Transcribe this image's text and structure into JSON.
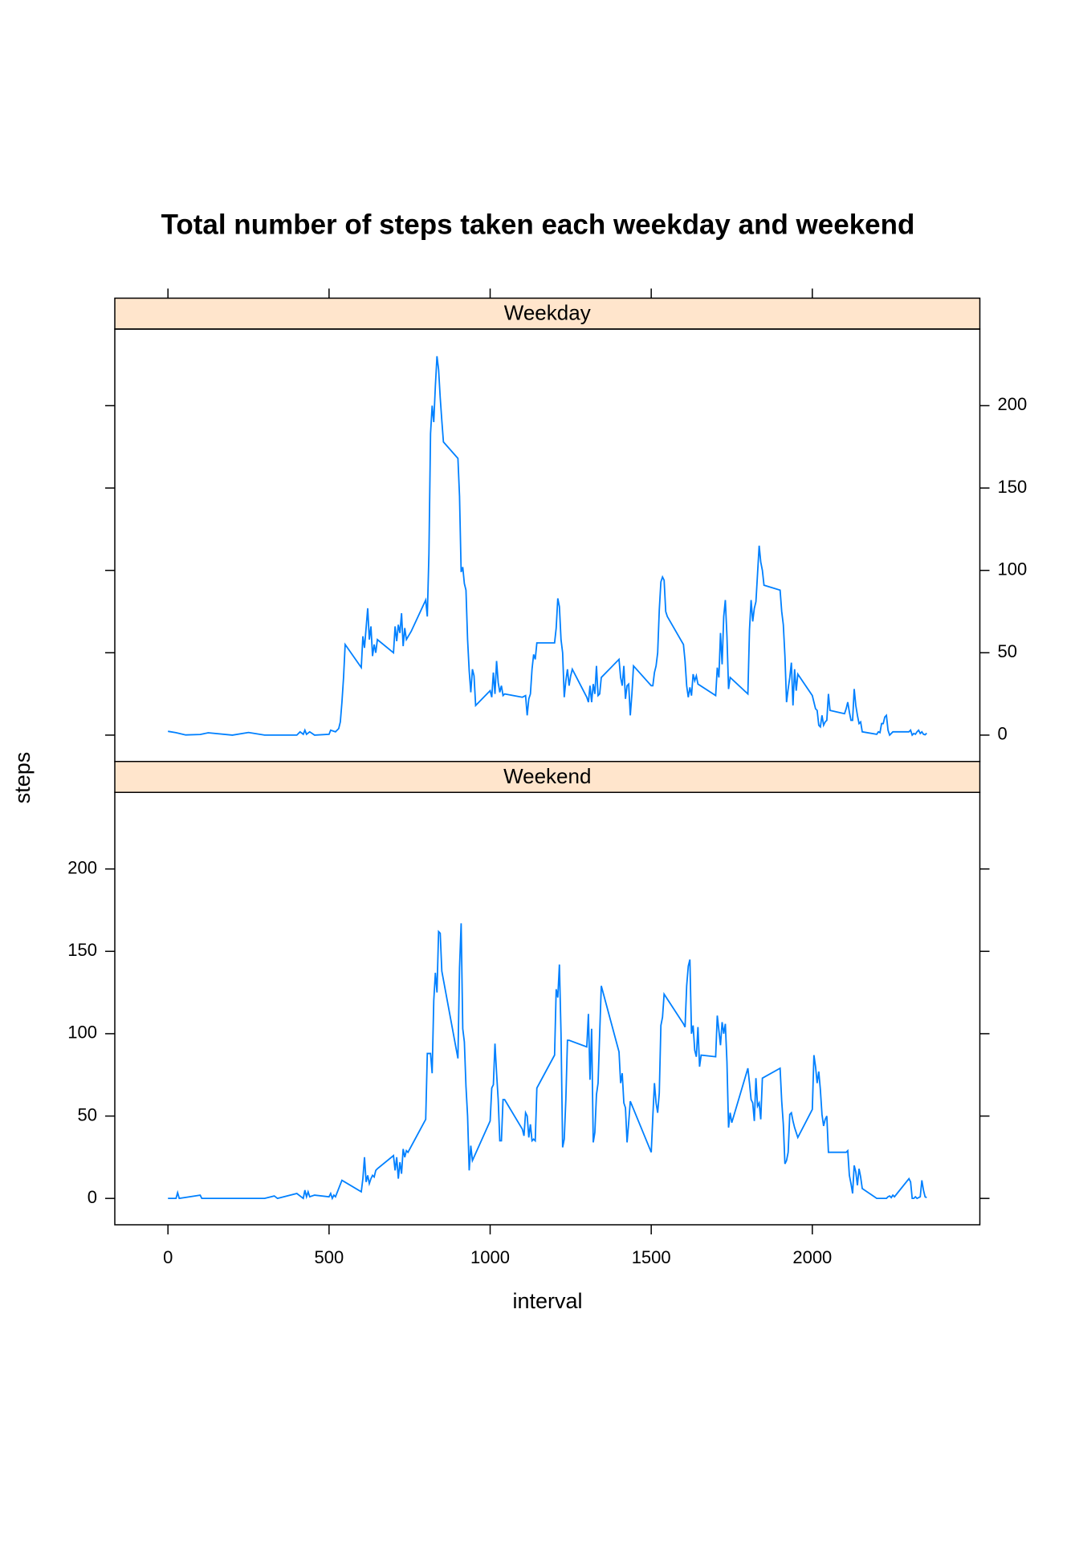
{
  "chart_data": {
    "type": "line",
    "title": "Total number of steps taken each weekday and weekend",
    "xlabel": "interval",
    "ylabel": "steps",
    "xlim": [
      -165,
      2520
    ],
    "ylim": [
      -16,
      246.5
    ],
    "xticks": [
      0,
      500,
      1000,
      1500,
      2000
    ],
    "yticks": [
      0,
      50,
      100,
      150,
      200
    ],
    "series": [
      {
        "name": "Weekday",
        "color": "#0080ff",
        "x": [
          0,
          25,
          55,
          100,
          125,
          200,
          250,
          300,
          400,
          410,
          420,
          425,
          430,
          440,
          455,
          500,
          505,
          520,
          530,
          535,
          540,
          545,
          550,
          600,
          605,
          610,
          615,
          620,
          625,
          630,
          635,
          640,
          645,
          650,
          700,
          705,
          710,
          715,
          720,
          725,
          730,
          735,
          740,
          755,
          800,
          805,
          810,
          815,
          820,
          825,
          830,
          835,
          840,
          845,
          850,
          855,
          900,
          905,
          910,
          915,
          920,
          925,
          930,
          935,
          940,
          945,
          950,
          955,
          1000,
          1005,
          1010,
          1015,
          1020,
          1025,
          1030,
          1035,
          1040,
          1045,
          1100,
          1110,
          1115,
          1120,
          1125,
          1130,
          1135,
          1140,
          1145,
          1200,
          1205,
          1210,
          1215,
          1220,
          1225,
          1230,
          1235,
          1240,
          1245,
          1250,
          1255,
          1300,
          1305,
          1310,
          1315,
          1320,
          1325,
          1330,
          1335,
          1340,
          1345,
          1400,
          1405,
          1410,
          1415,
          1420,
          1425,
          1430,
          1435,
          1440,
          1445,
          1500,
          1505,
          1510,
          1515,
          1520,
          1525,
          1530,
          1535,
          1540,
          1545,
          1550,
          1600,
          1605,
          1610,
          1615,
          1620,
          1625,
          1630,
          1635,
          1640,
          1645,
          1700,
          1705,
          1710,
          1715,
          1720,
          1725,
          1730,
          1735,
          1740,
          1745,
          1800,
          1805,
          1810,
          1815,
          1820,
          1825,
          1830,
          1835,
          1840,
          1845,
          1850,
          1900,
          1905,
          1910,
          1915,
          1920,
          1925,
          1930,
          1935,
          1940,
          1945,
          1950,
          1955,
          2000,
          2005,
          2010,
          2015,
          2020,
          2025,
          2030,
          2035,
          2040,
          2045,
          2050,
          2055,
          2100,
          2105,
          2110,
          2115,
          2120,
          2125,
          2130,
          2135,
          2140,
          2145,
          2150,
          2155,
          2200,
          2205,
          2210,
          2215,
          2220,
          2225,
          2230,
          2235,
          2240,
          2245,
          2250,
          2300,
          2305,
          2310,
          2315,
          2320,
          2325,
          2330,
          2335,
          2340,
          2345,
          2350,
          2355
        ],
        "values": [
          2.3,
          1.5,
          0.1,
          0.4,
          1.4,
          0,
          1.6,
          0,
          0,
          2,
          0.5,
          3,
          0.5,
          2,
          0,
          0.5,
          3,
          2,
          4,
          8,
          20,
          35,
          55,
          41,
          60,
          53,
          65,
          77,
          58,
          66,
          48,
          55,
          50,
          58,
          50,
          66,
          57,
          67,
          62,
          74,
          54,
          65,
          58,
          63,
          82,
          72,
          110,
          183,
          200,
          190,
          212,
          230,
          222,
          205,
          191,
          178,
          168,
          145,
          99,
          102,
          92,
          88,
          58,
          39,
          26,
          40,
          36,
          18,
          27,
          23,
          38,
          25,
          45,
          32,
          26,
          30,
          24,
          25,
          23,
          24,
          12,
          22,
          25,
          40,
          49,
          46,
          56,
          56,
          65,
          83,
          78,
          58,
          50,
          23,
          33,
          40,
          30,
          36,
          40,
          23,
          20,
          30,
          20,
          31,
          25,
          42,
          24,
          25,
          35,
          46,
          35,
          30,
          42,
          22,
          30,
          31,
          12,
          25,
          42,
          30,
          30,
          38,
          42,
          50,
          76,
          93,
          96,
          94,
          75,
          72,
          55,
          45,
          30,
          23,
          29,
          24,
          37,
          33,
          36,
          31,
          24,
          41,
          35,
          62,
          43,
          72,
          82,
          60,
          28,
          35,
          25,
          64,
          82,
          69,
          77,
          81,
          98,
          115,
          105,
          100,
          91,
          88,
          75,
          67,
          48,
          20,
          28,
          35,
          44,
          18,
          40,
          27,
          37,
          24,
          20,
          16,
          15,
          6,
          5,
          12,
          6,
          8,
          9,
          25,
          15,
          13,
          16,
          20,
          14,
          9,
          9,
          28,
          18,
          12,
          7,
          8,
          2,
          0.5,
          2,
          1.5,
          7,
          7,
          11,
          12,
          3,
          0,
          1,
          2,
          2,
          3,
          0,
          1,
          0.5,
          2,
          3,
          1,
          2,
          0.5,
          0.2,
          1.2
        ]
      },
      {
        "name": "Weekend",
        "color": "#0080ff",
        "x": [
          0,
          25,
          30,
          35,
          100,
          105,
          200,
          300,
          330,
          340,
          400,
          420,
          425,
          430,
          435,
          440,
          455,
          500,
          505,
          510,
          515,
          520,
          530,
          540,
          600,
          605,
          610,
          615,
          620,
          625,
          630,
          635,
          640,
          645,
          650,
          700,
          705,
          710,
          715,
          720,
          725,
          730,
          735,
          740,
          745,
          800,
          805,
          810,
          815,
          820,
          825,
          830,
          835,
          840,
          845,
          850,
          900,
          905,
          910,
          915,
          920,
          925,
          930,
          935,
          940,
          945,
          1000,
          1005,
          1010,
          1015,
          1020,
          1025,
          1030,
          1035,
          1040,
          1045,
          1100,
          1105,
          1110,
          1115,
          1120,
          1125,
          1130,
          1135,
          1140,
          1145,
          1200,
          1205,
          1210,
          1215,
          1220,
          1225,
          1230,
          1235,
          1240,
          1245,
          1300,
          1305,
          1310,
          1315,
          1320,
          1325,
          1330,
          1335,
          1340,
          1345,
          1400,
          1405,
          1410,
          1415,
          1420,
          1425,
          1430,
          1435,
          1500,
          1505,
          1510,
          1515,
          1520,
          1525,
          1530,
          1535,
          1540,
          1600,
          1605,
          1610,
          1615,
          1620,
          1625,
          1630,
          1635,
          1640,
          1645,
          1650,
          1655,
          1700,
          1705,
          1710,
          1715,
          1720,
          1725,
          1730,
          1735,
          1740,
          1745,
          1750,
          1800,
          1805,
          1810,
          1815,
          1820,
          1825,
          1830,
          1835,
          1840,
          1845,
          1900,
          1905,
          1910,
          1915,
          1920,
          1925,
          1930,
          1935,
          1940,
          1945,
          1950,
          1955,
          2000,
          2005,
          2010,
          2015,
          2020,
          2025,
          2030,
          2035,
          2040,
          2045,
          2050,
          2100,
          2105,
          2110,
          2115,
          2120,
          2125,
          2130,
          2135,
          2140,
          2145,
          2150,
          2155,
          2200,
          2230,
          2235,
          2240,
          2245,
          2250,
          2255,
          2300,
          2305,
          2310,
          2315,
          2320,
          2325,
          2330,
          2335,
          2340,
          2345,
          2350,
          2355
        ],
        "values": [
          0,
          0,
          3.5,
          0,
          2,
          0,
          0,
          0,
          1.5,
          0,
          3,
          0,
          5,
          1,
          4,
          1,
          2,
          1,
          3,
          0,
          2,
          1,
          6,
          11,
          4,
          12,
          25,
          10,
          14,
          9,
          12,
          14,
          13,
          17,
          18,
          26,
          17,
          25,
          12,
          22,
          15,
          30,
          25,
          29,
          28,
          48,
          88,
          88,
          88,
          76,
          120,
          137,
          125,
          162,
          161,
          138,
          85,
          140,
          167,
          103,
          95,
          68,
          50,
          17,
          32,
          23,
          47,
          67,
          69,
          94,
          76,
          60,
          35,
          35,
          60,
          60,
          42,
          38,
          52,
          50,
          37,
          45,
          35,
          36,
          35,
          67,
          87,
          127,
          122,
          142,
          100,
          31,
          36,
          60,
          96,
          96,
          92,
          112,
          72,
          103,
          34,
          40,
          63,
          70,
          100,
          129,
          89,
          70,
          76,
          58,
          55,
          34,
          46,
          59,
          28,
          50,
          70,
          58,
          52,
          64,
          105,
          110,
          124,
          106,
          104,
          129,
          141,
          145,
          100,
          105,
          90,
          86,
          104,
          80,
          87,
          86,
          111,
          102,
          93,
          107,
          100,
          106,
          83,
          43,
          52,
          46,
          79,
          70,
          60,
          58,
          47,
          73,
          56,
          58,
          48,
          73,
          79,
          59,
          45,
          21,
          23,
          28,
          51,
          52,
          47,
          43,
          40,
          37,
          54,
          87,
          80,
          70,
          77,
          66,
          51,
          44,
          48,
          50,
          28,
          28,
          28,
          29,
          14,
          9,
          3,
          20,
          16,
          8,
          18,
          13,
          6,
          0,
          0,
          1,
          1.5,
          0.5,
          2,
          1,
          12,
          10,
          0,
          0,
          1,
          0,
          0.5,
          1,
          11,
          5,
          1,
          0.5
        ]
      }
    ]
  }
}
